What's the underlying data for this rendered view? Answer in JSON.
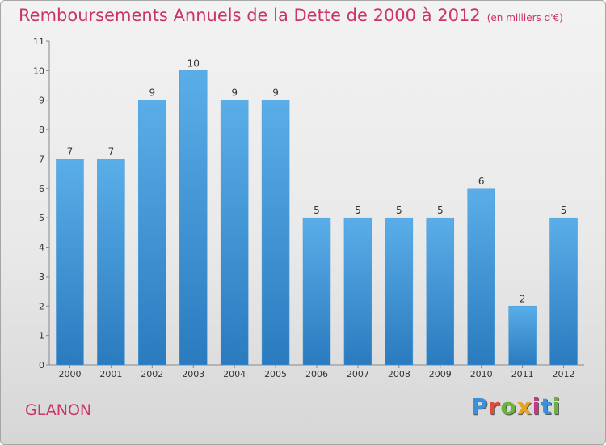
{
  "header": {
    "title": "Remboursements Annuels de la Dette de 2000 à 2012",
    "subtitle": "(en milliers d'€)"
  },
  "footer": {
    "place_name": "GLANON",
    "logo_text": "Proxiti"
  },
  "colors": {
    "bar_top": "#5aaee8",
    "bar_bottom": "#2a7bbf",
    "title": "#cc3366",
    "axis": "#888888",
    "grid": "#bcbcbc"
  },
  "chart_data": {
    "type": "bar",
    "title": "Remboursements Annuels de la Dette de 2000 à 2012",
    "subtitle": "(en milliers d'€)",
    "categories": [
      "2000",
      "2001",
      "2002",
      "2003",
      "2004",
      "2005",
      "2006",
      "2007",
      "2008",
      "2009",
      "2010",
      "2011",
      "2012"
    ],
    "values": [
      7,
      7,
      9,
      10,
      9,
      9,
      5,
      5,
      5,
      5,
      6,
      2,
      5
    ],
    "ylim": [
      0,
      11
    ],
    "yticks": [
      0,
      1,
      2,
      3,
      4,
      5,
      6,
      7,
      8,
      9,
      10,
      11
    ],
    "xlabel": "",
    "ylabel": "",
    "grid": "horizontal ticks",
    "data_labels": true
  }
}
